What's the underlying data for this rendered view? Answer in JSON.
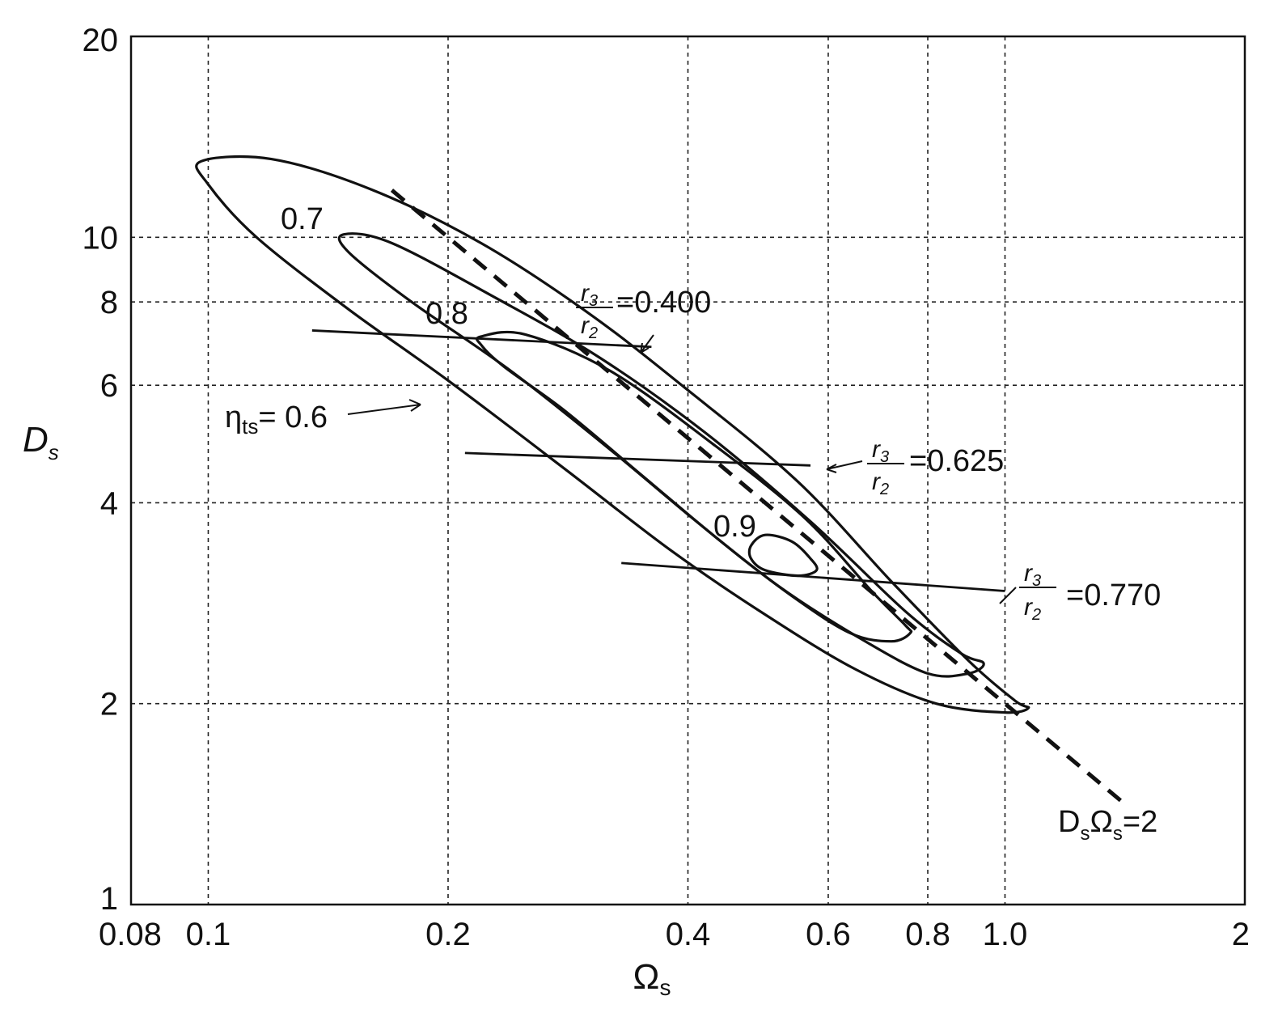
{
  "chart_data": {
    "type": "line",
    "title": "",
    "xlabel": "Ωs",
    "ylabel": "Ds",
    "x_scale": "log",
    "y_scale": "log",
    "xlim": [
      0.08,
      2
    ],
    "ylim": [
      1,
      20
    ],
    "grid": true,
    "legend": "none",
    "x_ticks": [
      {
        "value": 0.08,
        "label": "0.08"
      },
      {
        "value": 0.1,
        "label": "0.1"
      },
      {
        "value": 0.2,
        "label": "0.2"
      },
      {
        "value": 0.4,
        "label": "0.4"
      },
      {
        "value": 0.6,
        "label": "0.6"
      },
      {
        "value": 0.8,
        "label": "0.8"
      },
      {
        "value": 1.0,
        "label": "1.0"
      },
      {
        "value": 2,
        "label": "2"
      }
    ],
    "y_ticks": [
      {
        "value": 1,
        "label": "1"
      },
      {
        "value": 2,
        "label": "2"
      },
      {
        "value": 4,
        "label": "4"
      },
      {
        "value": 6,
        "label": "6"
      },
      {
        "value": 8,
        "label": "8"
      },
      {
        "value": 10,
        "label": "10"
      },
      {
        "value": 20,
        "label": "20"
      }
    ],
    "contours": [
      {
        "label": "ηts= 0.6",
        "level": 0.6,
        "points": [
          [
            0.098,
            13.0
          ],
          [
            0.12,
            13.1
          ],
          [
            0.16,
            11.8
          ],
          [
            0.22,
            9.8
          ],
          [
            0.3,
            7.7
          ],
          [
            0.4,
            5.9
          ],
          [
            0.55,
            4.3
          ],
          [
            0.72,
            3.05
          ],
          [
            0.9,
            2.32
          ],
          [
            1.03,
            2.02
          ],
          [
            1.07,
            1.97
          ],
          [
            1.0,
            1.94
          ],
          [
            0.82,
            2.0
          ],
          [
            0.65,
            2.25
          ],
          [
            0.5,
            2.72
          ],
          [
            0.38,
            3.4
          ],
          [
            0.28,
            4.5
          ],
          [
            0.2,
            6.1
          ],
          [
            0.15,
            7.8
          ],
          [
            0.115,
            10.0
          ],
          [
            0.1,
            12.0
          ]
        ]
      },
      {
        "label": "0.7",
        "level": 0.7,
        "points": [
          [
            0.148,
            10.1
          ],
          [
            0.17,
            9.8
          ],
          [
            0.23,
            8.1
          ],
          [
            0.31,
            6.6
          ],
          [
            0.42,
            5.1
          ],
          [
            0.57,
            3.75
          ],
          [
            0.75,
            2.75
          ],
          [
            0.88,
            2.38
          ],
          [
            0.94,
            2.3
          ],
          [
            0.9,
            2.22
          ],
          [
            0.8,
            2.22
          ],
          [
            0.66,
            2.5
          ],
          [
            0.52,
            3.0
          ],
          [
            0.41,
            3.75
          ],
          [
            0.32,
            4.8
          ],
          [
            0.24,
            6.3
          ],
          [
            0.18,
            8.0
          ],
          [
            0.15,
            9.5
          ]
        ]
      },
      {
        "label": "0.8",
        "level": 0.8,
        "points": [
          [
            0.22,
            7.1
          ],
          [
            0.25,
            7.15
          ],
          [
            0.32,
            6.3
          ],
          [
            0.43,
            4.9
          ],
          [
            0.56,
            3.8
          ],
          [
            0.68,
            2.95
          ],
          [
            0.75,
            2.62
          ],
          [
            0.76,
            2.55
          ],
          [
            0.72,
            2.48
          ],
          [
            0.64,
            2.55
          ],
          [
            0.54,
            2.9
          ],
          [
            0.44,
            3.5
          ],
          [
            0.35,
            4.4
          ],
          [
            0.28,
            5.5
          ],
          [
            0.235,
            6.4
          ],
          [
            0.22,
            6.9
          ]
        ]
      },
      {
        "label": "0.9",
        "level": 0.9,
        "points": [
          [
            0.48,
            3.45
          ],
          [
            0.5,
            3.58
          ],
          [
            0.54,
            3.5
          ],
          [
            0.57,
            3.3
          ],
          [
            0.58,
            3.17
          ],
          [
            0.55,
            3.11
          ],
          [
            0.5,
            3.17
          ],
          [
            0.48,
            3.3
          ]
        ]
      }
    ],
    "r3_r2_lines": [
      {
        "label": "=0.400",
        "value": 0.4,
        "points": [
          [
            0.135,
            7.25
          ],
          [
            0.36,
            6.85
          ]
        ]
      },
      {
        "label": "=0.625",
        "value": 0.625,
        "points": [
          [
            0.21,
            4.75
          ],
          [
            0.57,
            4.55
          ]
        ]
      },
      {
        "label": "=0.770",
        "value": 0.77,
        "points": [
          [
            0.33,
            3.25
          ],
          [
            1.0,
            2.95
          ]
        ]
      }
    ],
    "dashed_line": {
      "label": "DsΩs=2",
      "equation": "Ds*Ωs=2",
      "x_range": [
        0.17,
        1.4
      ]
    },
    "annotations": {
      "eta_prefix": "η",
      "eta_sub": "ts",
      "eta_value": "= 0.6",
      "frac_num": "r",
      "frac_num_sub": "3",
      "frac_den": "r",
      "frac_den_sub": "2",
      "dashed_D": "D",
      "dashed_D_sub": "s",
      "dashed_Omega": "Ω",
      "dashed_Omega_sub": "s",
      "dashed_eq": "=2",
      "level_07": "0.7",
      "level_08": "0.8",
      "level_09": "0.9"
    },
    "axis_title_x": {
      "base": "Ω",
      "sub": "s"
    },
    "axis_title_y": {
      "base": "D",
      "sub": "s"
    }
  }
}
